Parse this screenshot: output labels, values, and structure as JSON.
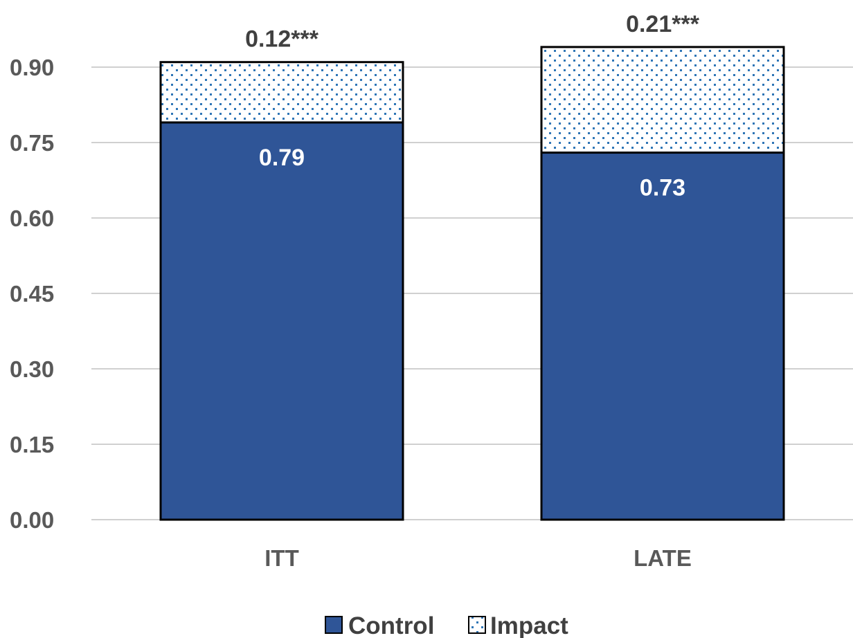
{
  "chart_data": {
    "type": "bar",
    "stacked": true,
    "categories": [
      "ITT",
      "LATE"
    ],
    "series": [
      {
        "name": "Control",
        "values": [
          0.79,
          0.73
        ],
        "color": "#2f5597",
        "pattern": "solid"
      },
      {
        "name": "Impact",
        "values": [
          0.12,
          0.21
        ],
        "color": "#2e75b6",
        "pattern": "dotted"
      }
    ],
    "data_labels": {
      "control": [
        "0.79",
        "0.73"
      ],
      "impact": [
        "0.12***",
        "0.21***"
      ]
    },
    "yticks": [
      "0.00",
      "0.15",
      "0.30",
      "0.45",
      "0.60",
      "0.75",
      "0.90"
    ],
    "ylim": [
      0,
      0.9
    ],
    "grid": true,
    "legend": "bottom",
    "title": "",
    "xlabel": "",
    "ylabel": ""
  }
}
